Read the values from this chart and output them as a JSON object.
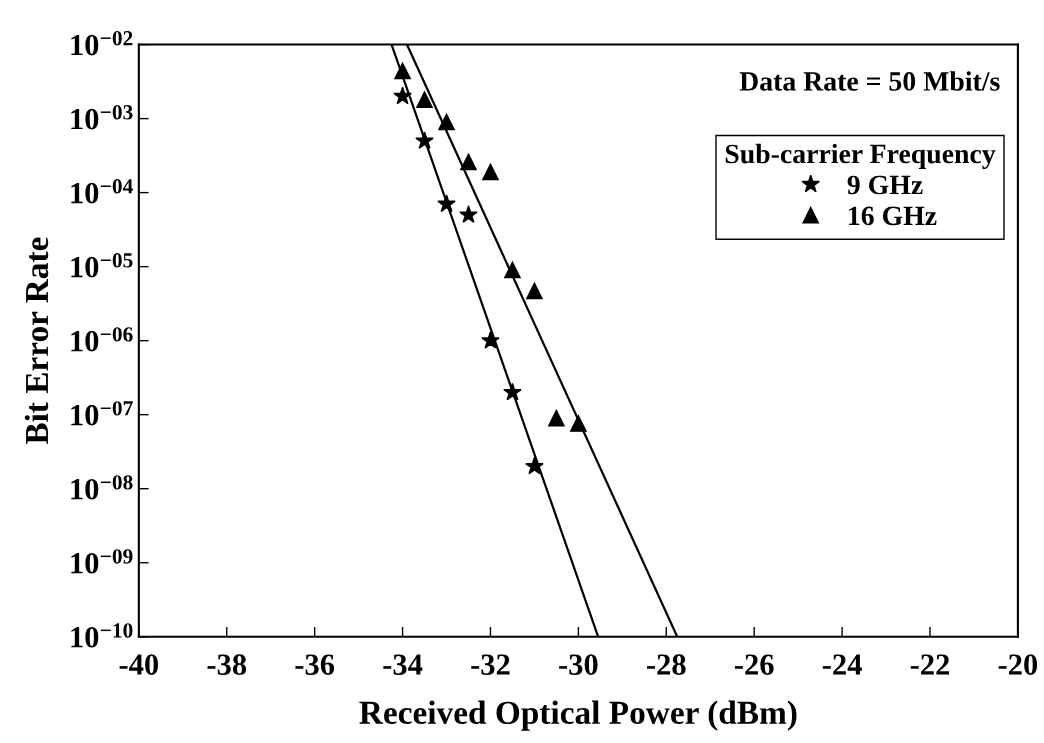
{
  "chart_data": {
    "type": "scatter",
    "xlabel": "Received Optical Power (dBm)",
    "ylabel": "Bit Error Rate",
    "legend_title": "Sub-carrier Frequency",
    "annotations": [
      "Data Rate = 50 Mbit/s"
    ],
    "log": "y",
    "grid": false,
    "legend": "top right",
    "xlim": [
      -40,
      -20
    ],
    "xticks": [
      -40,
      -38,
      -36,
      -34,
      -32,
      -30,
      -28,
      -26,
      -24,
      -22,
      -20
    ],
    "ylim": [
      1e-10,
      0.01
    ],
    "yticks": [
      {
        "value": 1e-10,
        "label": "10$^{−10}$"
      },
      {
        "value": 1e-09,
        "label": "10$^{−09}$"
      },
      {
        "value": 1e-08,
        "label": "10$^{−08}$"
      },
      {
        "value": 1e-07,
        "label": "10$^{−07}$"
      },
      {
        "value": 1e-06,
        "label": "10$^{−06}$"
      },
      {
        "value": 1e-05,
        "label": "10$^{−05}$"
      },
      {
        "value": 0.0001,
        "label": "10$^{−04}$"
      },
      {
        "value": 0.001,
        "label": "10$^{−03}$"
      },
      {
        "value": 0.01,
        "label": "10$^{−02}$"
      }
    ],
    "series": [
      {
        "name": "9 GHz",
        "color": "#000000",
        "marker": "star",
        "x": [
          -34,
          -33.5,
          -33,
          -32.5,
          -32,
          -31.5,
          -31
        ],
        "values": [
          0.002,
          0.0005,
          7e-05,
          5e-05,
          1e-06,
          2e-07,
          2e-08
        ]
      },
      {
        "name": "16 GHz",
        "color": "#000000",
        "marker": "triangle",
        "x": [
          -34,
          -33.5,
          -33,
          -32.5,
          -32,
          -31.5,
          -31,
          -30.5,
          -30
        ],
        "values": [
          0.0044,
          0.0018,
          0.0009,
          0.00026,
          0.00019,
          9e-06,
          4.7e-06,
          9e-08,
          7.6e-08
        ]
      },
      {
        "type": "line",
        "color": "#000000",
        "marker": "none",
        "line_style": "solid",
        "x": [
          -34.25,
          -29.55
        ],
        "values": [
          0.01,
          1e-10
        ]
      },
      {
        "type": "line",
        "color": "#000000",
        "marker": "none",
        "line_style": "solid",
        "x": [
          -33.9,
          -27.75
        ],
        "values": [
          0.01,
          1e-10
        ]
      }
    ]
  }
}
